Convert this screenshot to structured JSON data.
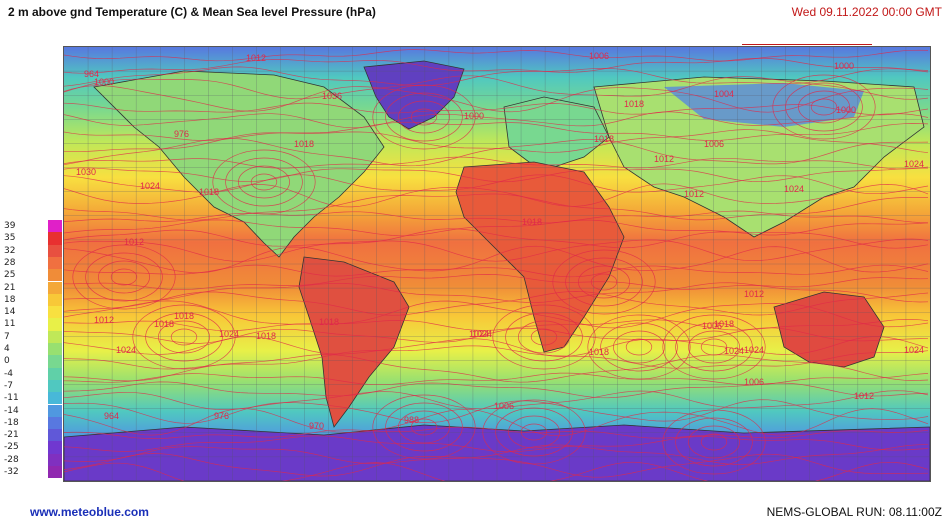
{
  "header": {
    "title": "2 m above gnd Temperature (C)  & Mean Sea level Pressure (hPa)",
    "datetime": "Wed 09.11.2022  00:00 GMT"
  },
  "footer": {
    "site": "www.meteoblue.com",
    "run": "NEMS-GLOBAL  RUN: 08.11:00Z"
  },
  "legend": {
    "items": [
      {
        "label": "39",
        "color": "#e020c8"
      },
      {
        "label": "35",
        "color": "#e83030"
      },
      {
        "label": "32",
        "color": "#e85040"
      },
      {
        "label": "28",
        "color": "#f07040"
      },
      {
        "label": "25",
        "color": "#f08c38"
      },
      {
        "label": "21",
        "color": "#f4a838"
      },
      {
        "label": "18",
        "color": "#f8c838"
      },
      {
        "label": "14",
        "color": "#f8e040"
      },
      {
        "label": "11",
        "color": "#e8f048"
      },
      {
        "label": "7",
        "color": "#c0e858"
      },
      {
        "label": "4",
        "color": "#98e070"
      },
      {
        "label": "0",
        "color": "#78d890"
      },
      {
        "label": "-4",
        "color": "#60d0a8"
      },
      {
        "label": "-7",
        "color": "#50c8c0"
      },
      {
        "label": "-11",
        "color": "#48b8d8"
      },
      {
        "label": "-14",
        "color": "#5098e0"
      },
      {
        "label": "-18",
        "color": "#5878e0"
      },
      {
        "label": "-21",
        "color": "#6058d8"
      },
      {
        "label": "-25",
        "color": "#7038d0"
      },
      {
        "label": "-28",
        "color": "#8030c0"
      },
      {
        "label": "-32",
        "color": "#9028b0"
      }
    ]
  },
  "map": {
    "isobar_color": "#e0284a",
    "isobar_labels": [
      "1012",
      "1006",
      "1000",
      "1004",
      "1000",
      "1030",
      "1024",
      "1018",
      "1012",
      "1018",
      "1024",
      "1018",
      "1024",
      "1018",
      "1024",
      "1006",
      "1000",
      "964",
      "976",
      "970",
      "988",
      "1012",
      "1024",
      "1018",
      "1024",
      "1018",
      "1006",
      "1012",
      "1024",
      "1018",
      "1012",
      "1036",
      "1024",
      "1018",
      "1018",
      "1012",
      "1006",
      "1000",
      "976",
      "964",
      "1018",
      "1024",
      "1006",
      "1012",
      "1018",
      "1024"
    ]
  }
}
